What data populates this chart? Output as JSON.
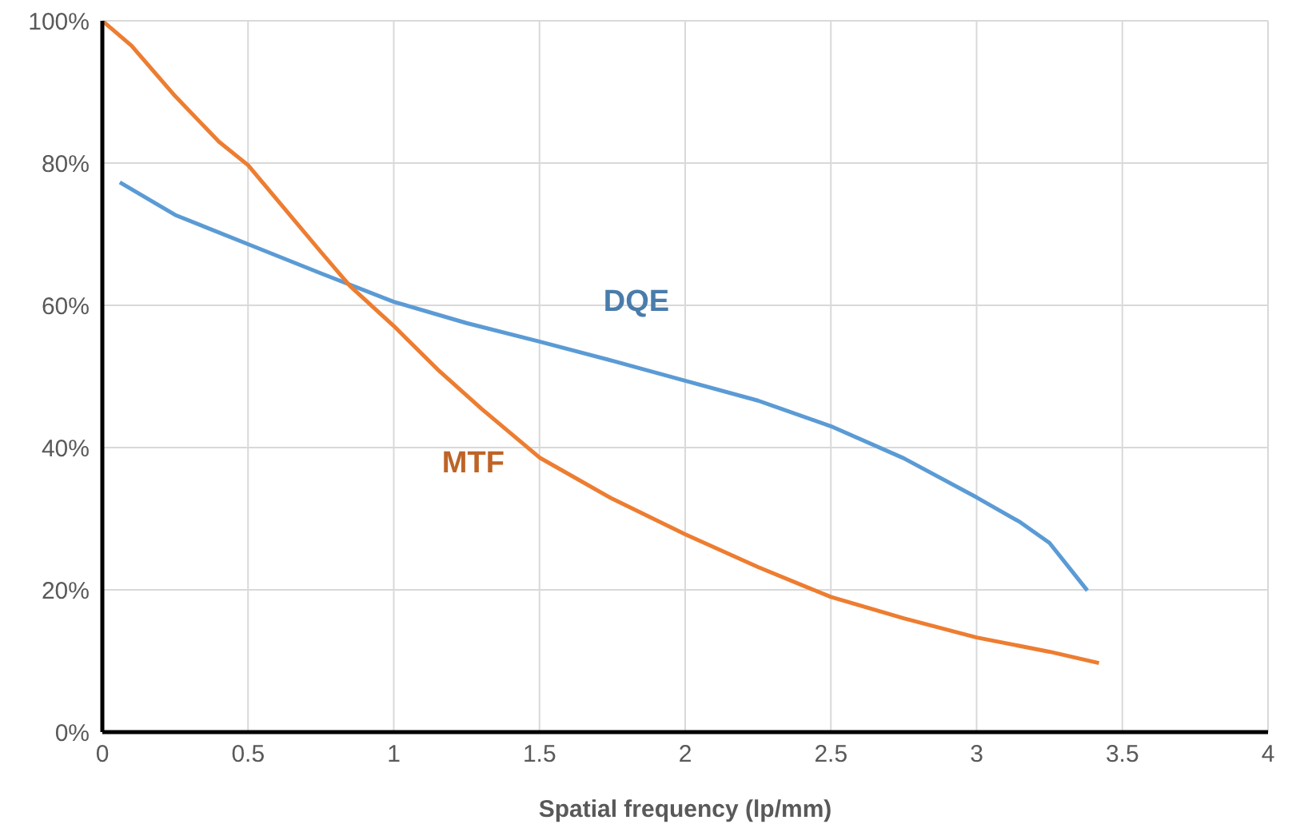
{
  "chart_data": {
    "type": "line",
    "xlabel": "Spatial frequency (lp/mm)",
    "xlim": [
      0,
      4
    ],
    "xticks": [
      0,
      0.5,
      1,
      1.5,
      2,
      2.5,
      3,
      3.5,
      4
    ],
    "ylim": [
      0,
      100
    ],
    "yticks": [
      {
        "value": 0,
        "label": "0%"
      },
      {
        "value": 20,
        "label": "20%"
      },
      {
        "value": 40,
        "label": "40%"
      },
      {
        "value": 60,
        "label": "60%"
      },
      {
        "value": 80,
        "label": "80%"
      },
      {
        "value": 100,
        "label": "100%"
      }
    ],
    "grid": true,
    "marker": "none",
    "line_style": "solid",
    "series": [
      {
        "name": "DQE",
        "color": "#5b9bd5",
        "x": [
          0.06,
          0.25,
          0.5,
          0.75,
          1.0,
          1.25,
          1.5,
          1.75,
          2.0,
          2.25,
          2.5,
          2.75,
          3.0,
          3.15,
          3.25,
          3.38
        ],
        "values": [
          77.3,
          72.7,
          68.6,
          64.5,
          60.5,
          57.5,
          54.9,
          52.2,
          49.4,
          46.6,
          43.0,
          38.5,
          33.0,
          29.5,
          26.6,
          19.9
        ]
      },
      {
        "name": "MTF",
        "color": "#ed7d31",
        "x": [
          0,
          0.1,
          0.25,
          0.4,
          0.5,
          0.75,
          0.85,
          1.0,
          1.15,
          1.3,
          1.5,
          1.75,
          2.0,
          2.25,
          2.5,
          2.75,
          3.0,
          3.25,
          3.42
        ],
        "values": [
          100,
          96.5,
          89.4,
          83,
          79.7,
          67.5,
          62.7,
          57.1,
          51,
          45.5,
          38.6,
          32.8,
          27.8,
          23.2,
          19,
          16,
          13.3,
          11.3,
          9.7
        ]
      }
    ]
  }
}
